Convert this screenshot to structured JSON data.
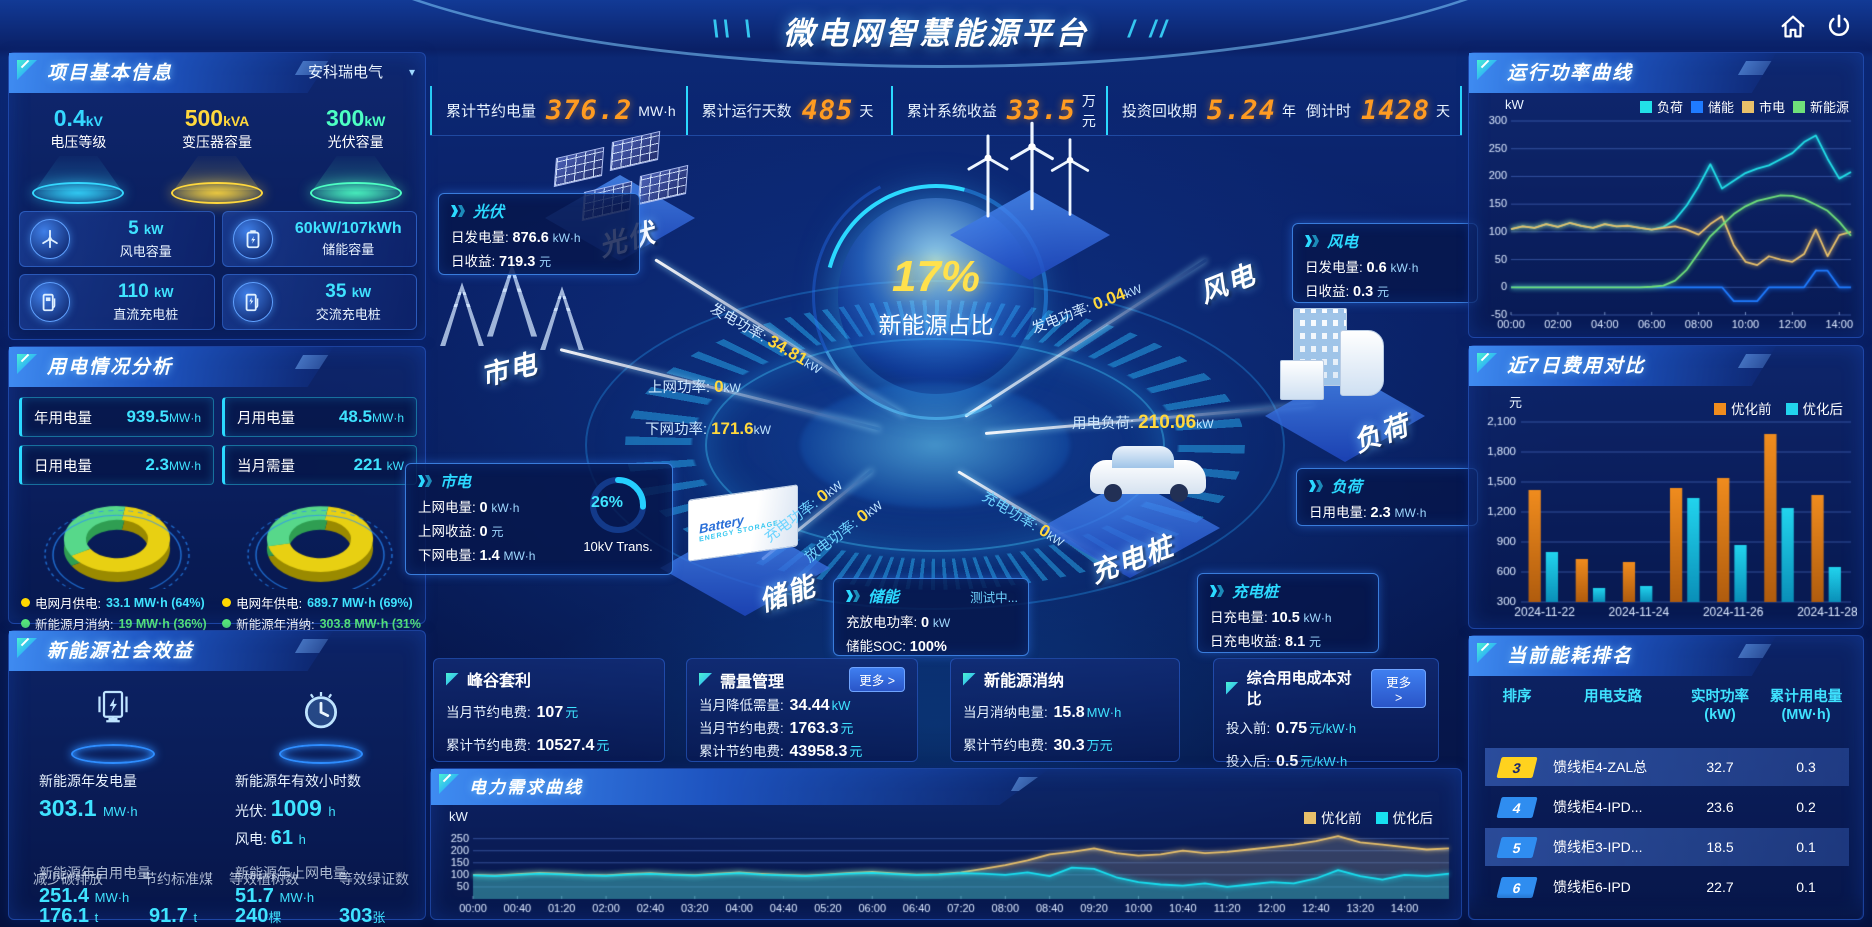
{
  "app": {
    "title": "微电网智慧能源平台"
  },
  "topbar": {
    "stats": [
      {
        "label": "累计节约电量",
        "value": "376.2",
        "unit": "MW·h"
      },
      {
        "label": "累计运行天数",
        "value": "485",
        "unit": "天"
      },
      {
        "label": "累计系统收益",
        "value": "33.5",
        "unit": "万元"
      },
      {
        "label": "投资回收期",
        "value": "5.24",
        "unit": "年"
      },
      {
        "label": "倒计时",
        "value": "1428",
        "unit": "天"
      }
    ]
  },
  "project": {
    "title": "项目基本信息",
    "company": "安科瑞电气",
    "caret": "▾",
    "pedestals": [
      {
        "value": "0.4",
        "unit": "kV",
        "label": "电压等级",
        "color": "#35d8ff"
      },
      {
        "value": "500",
        "unit": "kVA",
        "label": "变压器容量",
        "color": "#ffd83d"
      },
      {
        "value": "300",
        "unit": "kW",
        "label": "光伏容量",
        "color": "#4dffc3"
      }
    ],
    "cards": [
      {
        "icon": "wind-turbine-icon",
        "value": "5",
        "unit": "kW",
        "label": "风电容量"
      },
      {
        "icon": "battery-icon",
        "value": "60kW/107kWh",
        "unit": "",
        "label": "储能容量"
      },
      {
        "icon": "dc-charger-icon",
        "value": "110",
        "unit": "kW",
        "label": "直流充电桩"
      },
      {
        "icon": "ac-charger-icon",
        "value": "35",
        "unit": "kW",
        "label": "交流充电桩"
      }
    ]
  },
  "usage": {
    "title": "用电情况分析",
    "chips": [
      {
        "label": "年用电量",
        "value": "939.5",
        "unit": "MW·h"
      },
      {
        "label": "月用电量",
        "value": "48.5",
        "unit": "MW·h"
      },
      {
        "label": "日用电量",
        "value": "2.3",
        "unit": "MW·h"
      },
      {
        "label": "当月需量",
        "value": "221",
        "unit": "kW"
      }
    ],
    "legend": [
      {
        "label": "电网月供电:",
        "value": "33.1 MW·h (64%)",
        "color": "#ffd800",
        "tone": "cyan"
      },
      {
        "label": "电网年供电:",
        "value": "689.7 MW·h (69%)",
        "color": "#ffd800",
        "tone": "cyan"
      },
      {
        "label": "新能源月消纳:",
        "value": "19 MW·h (36%)",
        "color": "#57e87a",
        "tone": "green"
      },
      {
        "label": "新能源年消纳:",
        "value": "303.8 MW·h (31%",
        "color": "#57e87a",
        "tone": "green"
      }
    ]
  },
  "benefits": {
    "title": "新能源社会效益",
    "gen_label": "新能源年发电量",
    "gen_value": "303.1",
    "gen_unit": "MW·h",
    "hours_label": "新能源年有效小时数",
    "pv_hours_label": "光伏:",
    "pv_hours_value": "1009",
    "pv_hours_unit": "h",
    "wind_hours_label": "风电:",
    "wind_hours_value": "61",
    "wind_hours_unit": "h",
    "self_label": "新能源年自用电量",
    "self_value": "251.4",
    "self_unit": "MW·h",
    "co2_label": "减少碳排放",
    "co2_value": "176.1",
    "co2_unit": "t",
    "coal_label": "节约标准煤",
    "coal_value": "91.7",
    "coal_unit": "t",
    "feed_label": "新能源年上网电量",
    "feed_value": "51.7",
    "feed_unit": "MW·h",
    "tree_label": "等效植树数",
    "tree_value": "240",
    "tree_unit": "棵",
    "cert_label": "等效绿证数",
    "cert_value": "303",
    "cert_unit": "张"
  },
  "center": {
    "core": {
      "percent": "17%",
      "label": "新能源占比"
    },
    "nodes": {
      "pv": "光伏",
      "wind": "风电",
      "grid": "市电",
      "load": "负荷",
      "storage": "储能",
      "charger": "充电桩"
    },
    "pv_box": {
      "title": "光伏",
      "rows": [
        {
          "label": "日发电量:",
          "value": "876.6",
          "unit": "kW·h"
        },
        {
          "label": "日收益:",
          "value": "719.3",
          "unit": "元"
        }
      ]
    },
    "wind_box": {
      "title": "风电",
      "rows": [
        {
          "label": "日发电量:",
          "value": "0.6",
          "unit": "kW·h"
        },
        {
          "label": "日收益:",
          "value": "0.3",
          "unit": "元"
        }
      ]
    },
    "grid_box": {
      "title": "市电",
      "rows": [
        {
          "label": "上网电量:",
          "value": "0",
          "unit": "kW·h"
        },
        {
          "label": "上网收益:",
          "value": "0",
          "unit": "元"
        },
        {
          "label": "下网电量:",
          "value": "1.4",
          "unit": "MW·h"
        }
      ],
      "gauge_percent": 26,
      "gauge_text": "26%",
      "gauge_label": "10kV Trans."
    },
    "storage_box": {
      "title": "储能",
      "badge": "测试中...",
      "rows": [
        {
          "label": "充放电功率:",
          "value": "0",
          "unit": "kW"
        },
        {
          "label": "储能SOC:",
          "value": "100%",
          "unit": ""
        }
      ]
    },
    "load_box": {
      "title": "负荷",
      "rows": [
        {
          "label": "日用电量:",
          "value": "2.3",
          "unit": "MW·h"
        }
      ]
    },
    "charger_box": {
      "title": "充电桩",
      "rows": [
        {
          "label": "日充电量:",
          "value": "10.5",
          "unit": "kW·h"
        },
        {
          "label": "日充电收益:",
          "value": "8.1",
          "unit": "元"
        }
      ]
    },
    "flows": [
      {
        "label": "发电功率:",
        "value": "34.81",
        "unit": "kW"
      },
      {
        "label": "上网功率:",
        "value": "0",
        "unit": "kW"
      },
      {
        "label": "下网功率:",
        "value": "171.6",
        "unit": "kW"
      },
      {
        "label": "充电功率:",
        "value": "0",
        "unit": "kW"
      },
      {
        "label": "放电功率:",
        "value": "0",
        "unit": "kW"
      },
      {
        "label": "发电功率:",
        "value": "0.04",
        "unit": "kW"
      },
      {
        "label": "用电负荷:",
        "value": "210.06",
        "unit": "kW"
      },
      {
        "label": "充电功率:",
        "value": "0",
        "unit": "kW"
      }
    ]
  },
  "kpis": [
    {
      "title": "峰谷套利",
      "rows": [
        {
          "label": "当月节约电费:",
          "value": "107",
          "unit": "元"
        },
        {
          "label": "累计节约电费:",
          "value": "10527.4",
          "unit": "元"
        }
      ]
    },
    {
      "title": "需量管理",
      "more": "更多 >",
      "rows": [
        {
          "label": "当月降低需量:",
          "value": "34.44",
          "unit": "kW"
        },
        {
          "label": "当月节约电费:",
          "value": "1763.3",
          "unit": "元"
        },
        {
          "label": "累计节约电费:",
          "value": "43958.3",
          "unit": "元"
        }
      ]
    },
    {
      "title": "新能源消纳",
      "rows": [
        {
          "label": "当月消纳电量:",
          "value": "15.8",
          "unit": "MW·h"
        },
        {
          "label": "累计节约电费:",
          "value": "30.3",
          "unit": "万元"
        }
      ]
    },
    {
      "title": "综合用电成本对比",
      "more": "更多 >",
      "rows": [
        {
          "label": "投入前:",
          "value": "0.75",
          "unit": "元/kW·h"
        },
        {
          "label": "投入后:",
          "value": "0.5",
          "unit": "元/kW·h"
        }
      ]
    }
  ],
  "panels": {
    "run_power": "运行功率曲线",
    "cost_compare": "近7日费用对比",
    "ranking": "当前能耗排名",
    "demand": "电力需求曲线"
  },
  "ranking": {
    "columns": [
      {
        "top": "排序",
        "bottom": ""
      },
      {
        "top": "用电支路",
        "bottom": ""
      },
      {
        "top": "实时功率",
        "bottom": "(kW)"
      },
      {
        "top": "累计用电量",
        "bottom": "(MW·h)"
      }
    ],
    "rows": [
      {
        "rank": "3",
        "branch": "馈线柜4-ZAL总",
        "power": "32.7",
        "energy": "0.3",
        "badge_bg": "#ffd21e",
        "badge_fg": "#1a2a6e"
      },
      {
        "rank": "4",
        "branch": "馈线柜4-IPD...",
        "power": "23.6",
        "energy": "0.2",
        "badge_bg": "#2f8df0",
        "badge_fg": "#ffffff"
      },
      {
        "rank": "5",
        "branch": "馈线柜3-IPD...",
        "power": "18.5",
        "energy": "0.1",
        "badge_bg": "#2f8df0",
        "badge_fg": "#ffffff"
      },
      {
        "rank": "6",
        "branch": "馈线柜6-IPD",
        "power": "22.7",
        "energy": "0.1",
        "badge_bg": "#2f8df0",
        "badge_fg": "#ffffff"
      }
    ]
  },
  "chart_data": [
    {
      "id": "run-power",
      "type": "line",
      "title": "运行功率曲线",
      "unit": "kW",
      "ylim": [
        -50,
        300
      ],
      "yticks": [
        -50,
        0,
        50,
        100,
        150,
        200,
        250,
        300
      ],
      "xticks": [
        "00:00",
        "02:00",
        "04:00",
        "06:00",
        "08:00",
        "10:00",
        "12:00",
        "14:00"
      ],
      "xspan": 0.9655,
      "legend_position": "top",
      "series": [
        {
          "name": "负荷",
          "color": "#22e0e8",
          "values": [
            105,
            110,
            107,
            114,
            109,
            116,
            111,
            107,
            114,
            110,
            111,
            107,
            104,
            109,
            122,
            148,
            182,
            222,
            178,
            192,
            206,
            214,
            220,
            231,
            242,
            262,
            274,
            232,
            196,
            208
          ]
        },
        {
          "name": "储能",
          "color": "#1f7bff",
          "values": [
            0,
            0,
            0,
            0,
            0,
            0,
            0,
            0,
            0,
            0,
            0,
            0,
            0,
            0,
            0,
            0,
            0,
            0,
            0,
            -25,
            -25,
            -25,
            0,
            0,
            0,
            0,
            30,
            30,
            0,
            0
          ]
        },
        {
          "name": "市电",
          "color": "#e8c06a",
          "values": [
            105,
            110,
            107,
            114,
            109,
            116,
            111,
            107,
            114,
            110,
            111,
            107,
            104,
            107,
            110,
            104,
            95,
            114,
            128,
            76,
            46,
            40,
            56,
            50,
            46,
            60,
            104,
            56,
            94,
            100
          ]
        },
        {
          "name": "新能源",
          "color": "#6fe07a",
          "values": [
            0,
            0,
            0,
            0,
            0,
            0,
            0,
            0,
            0,
            0,
            0,
            0,
            1,
            3,
            12,
            32,
            62,
            92,
            112,
            132,
            146,
            156,
            161,
            166,
            165,
            159,
            149,
            138,
            118,
            93
          ]
        }
      ]
    },
    {
      "id": "cost-compare",
      "type": "bar",
      "title": "近7日费用对比",
      "unit": "元",
      "ylim": [
        300,
        2100
      ],
      "yticks": [
        300,
        600,
        900,
        1200,
        1500,
        1800,
        2100
      ],
      "categories": [
        "2024-11-22",
        "2024-11-23",
        "2024-11-24",
        "2024-11-25",
        "2024-11-26",
        "2024-11-27",
        "2024-11-28"
      ],
      "xtick_indices": [
        0,
        2,
        4,
        6
      ],
      "legend_position": "top-right",
      "series": [
        {
          "name": "优化前",
          "color": "#f08c1e",
          "color2": "#b05c0e",
          "values": [
            1420,
            730,
            700,
            1440,
            1540,
            1980,
            1370
          ]
        },
        {
          "name": "优化后",
          "color": "#22d4ee",
          "color2": "#0a8fb8",
          "values": [
            800,
            440,
            460,
            1340,
            870,
            1240,
            650
          ]
        }
      ]
    },
    {
      "id": "demand-curve",
      "type": "line",
      "title": "电力需求曲线",
      "unit": "kW",
      "ylim": [
        0,
        290
      ],
      "yticks": [
        50,
        100,
        150,
        200,
        250
      ],
      "xticks": [
        "00:00",
        "00:40",
        "01:20",
        "02:00",
        "02:40",
        "03:20",
        "04:00",
        "04:40",
        "05:20",
        "06:00",
        "06:40",
        "07:20",
        "08:00",
        "08:40",
        "09:20",
        "10:00",
        "10:40",
        "11:20",
        "12:00",
        "12:40",
        "13:20",
        "14:00"
      ],
      "xspan": 0.9545,
      "legend_position": "top-right",
      "series": [
        {
          "name": "优化前",
          "color": "#e8c06a",
          "fill": "rgba(150,150,140,0.30)",
          "values": [
            100,
            97,
            103,
            108,
            105,
            100,
            98,
            104,
            107,
            102,
            99,
            105,
            110,
            104,
            100,
            97,
            102,
            108,
            112,
            106,
            101,
            103,
            110,
            125,
            140,
            160,
            185,
            195,
            210,
            190,
            180,
            185,
            200,
            190,
            195,
            205,
            215,
            225,
            240,
            260,
            235,
            225,
            215,
            205,
            210
          ]
        },
        {
          "name": "优化后",
          "color": "#18e0f0",
          "fill": "rgba(20,190,210,0.35)",
          "values": [
            98,
            95,
            100,
            105,
            102,
            98,
            96,
            101,
            104,
            100,
            97,
            102,
            107,
            101,
            98,
            95,
            100,
            105,
            108,
            103,
            99,
            101,
            107,
            105,
            100,
            110,
            95,
            130,
            125,
            90,
            70,
            60,
            55,
            65,
            50,
            60,
            70,
            65,
            85,
            120,
            95,
            80,
            100,
            95,
            105
          ]
        }
      ]
    },
    {
      "id": "donut-month",
      "type": "pie",
      "slices": [
        {
          "name": "电网月供电",
          "value": 64,
          "color": "#e8d012",
          "side": "#9a8a00"
        },
        {
          "name": "新能源月消纳",
          "value": 36,
          "color": "#57d88a",
          "side": "#2f9e52"
        }
      ]
    },
    {
      "id": "donut-year",
      "type": "pie",
      "slices": [
        {
          "name": "电网年供电",
          "value": 69,
          "color": "#e8d012",
          "side": "#9a8a00"
        },
        {
          "name": "新能源年消纳",
          "value": 31,
          "color": "#57d88a",
          "side": "#2f9e52"
        }
      ]
    }
  ]
}
